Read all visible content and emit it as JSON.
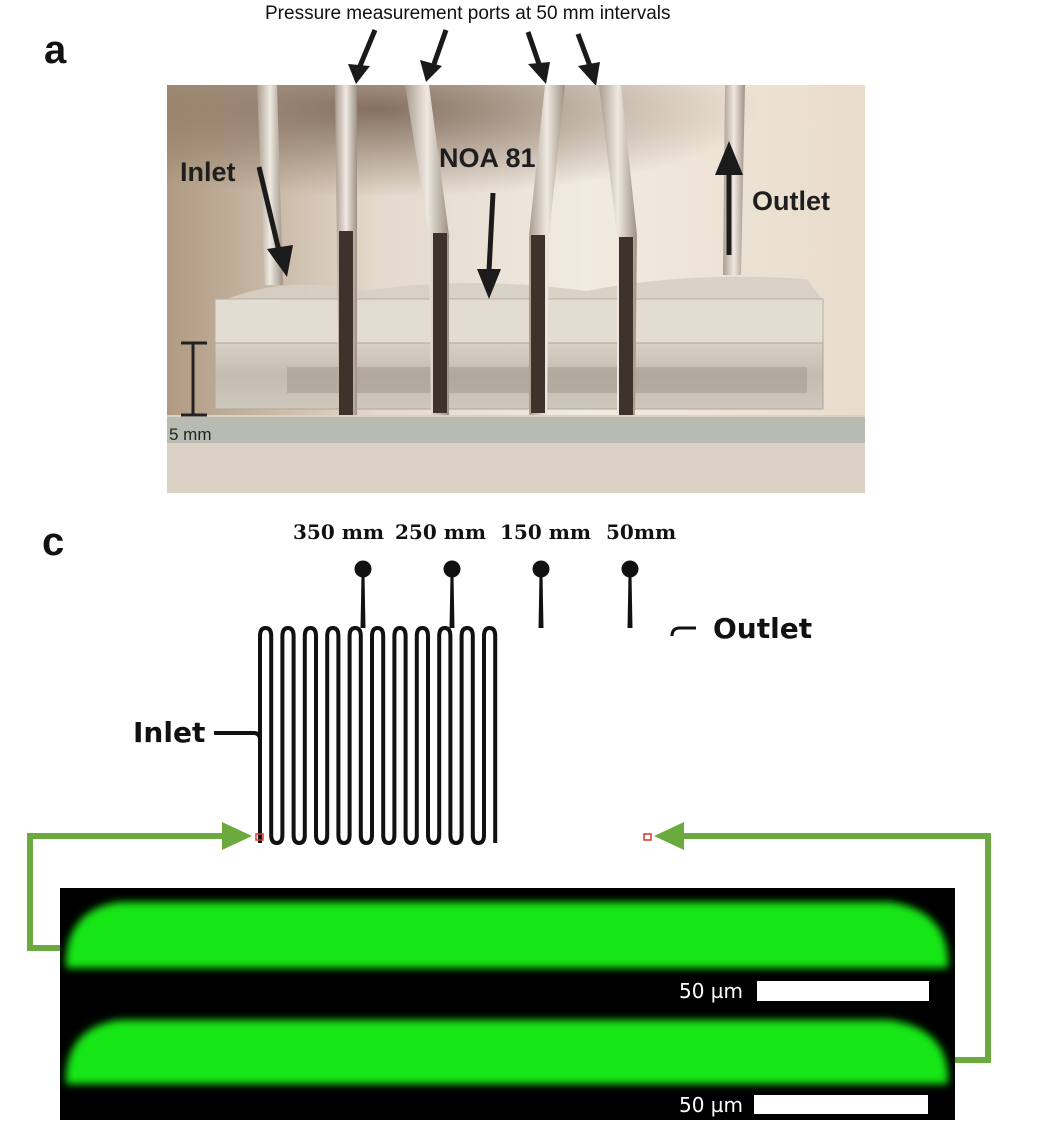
{
  "panel_a": {
    "letter": "a",
    "top_caption": "Pressure measurement ports at 50 mm intervals",
    "labels": {
      "inlet": "Inlet",
      "material": "NOA 81",
      "outlet": "Outlet"
    },
    "scale_bar": "5 mm"
  },
  "panel_c": {
    "letter": "c",
    "port_labels": [
      "350 mm",
      "250 mm",
      "150 mm",
      "50mm"
    ],
    "inlet": "Inlet",
    "outlet": "Outlet",
    "accent_color": "#6aaa3e",
    "fluorescence_color": "#19e619",
    "micrographs": [
      {
        "scale_label": "50 µm"
      },
      {
        "scale_label": "50 µm"
      }
    ]
  }
}
